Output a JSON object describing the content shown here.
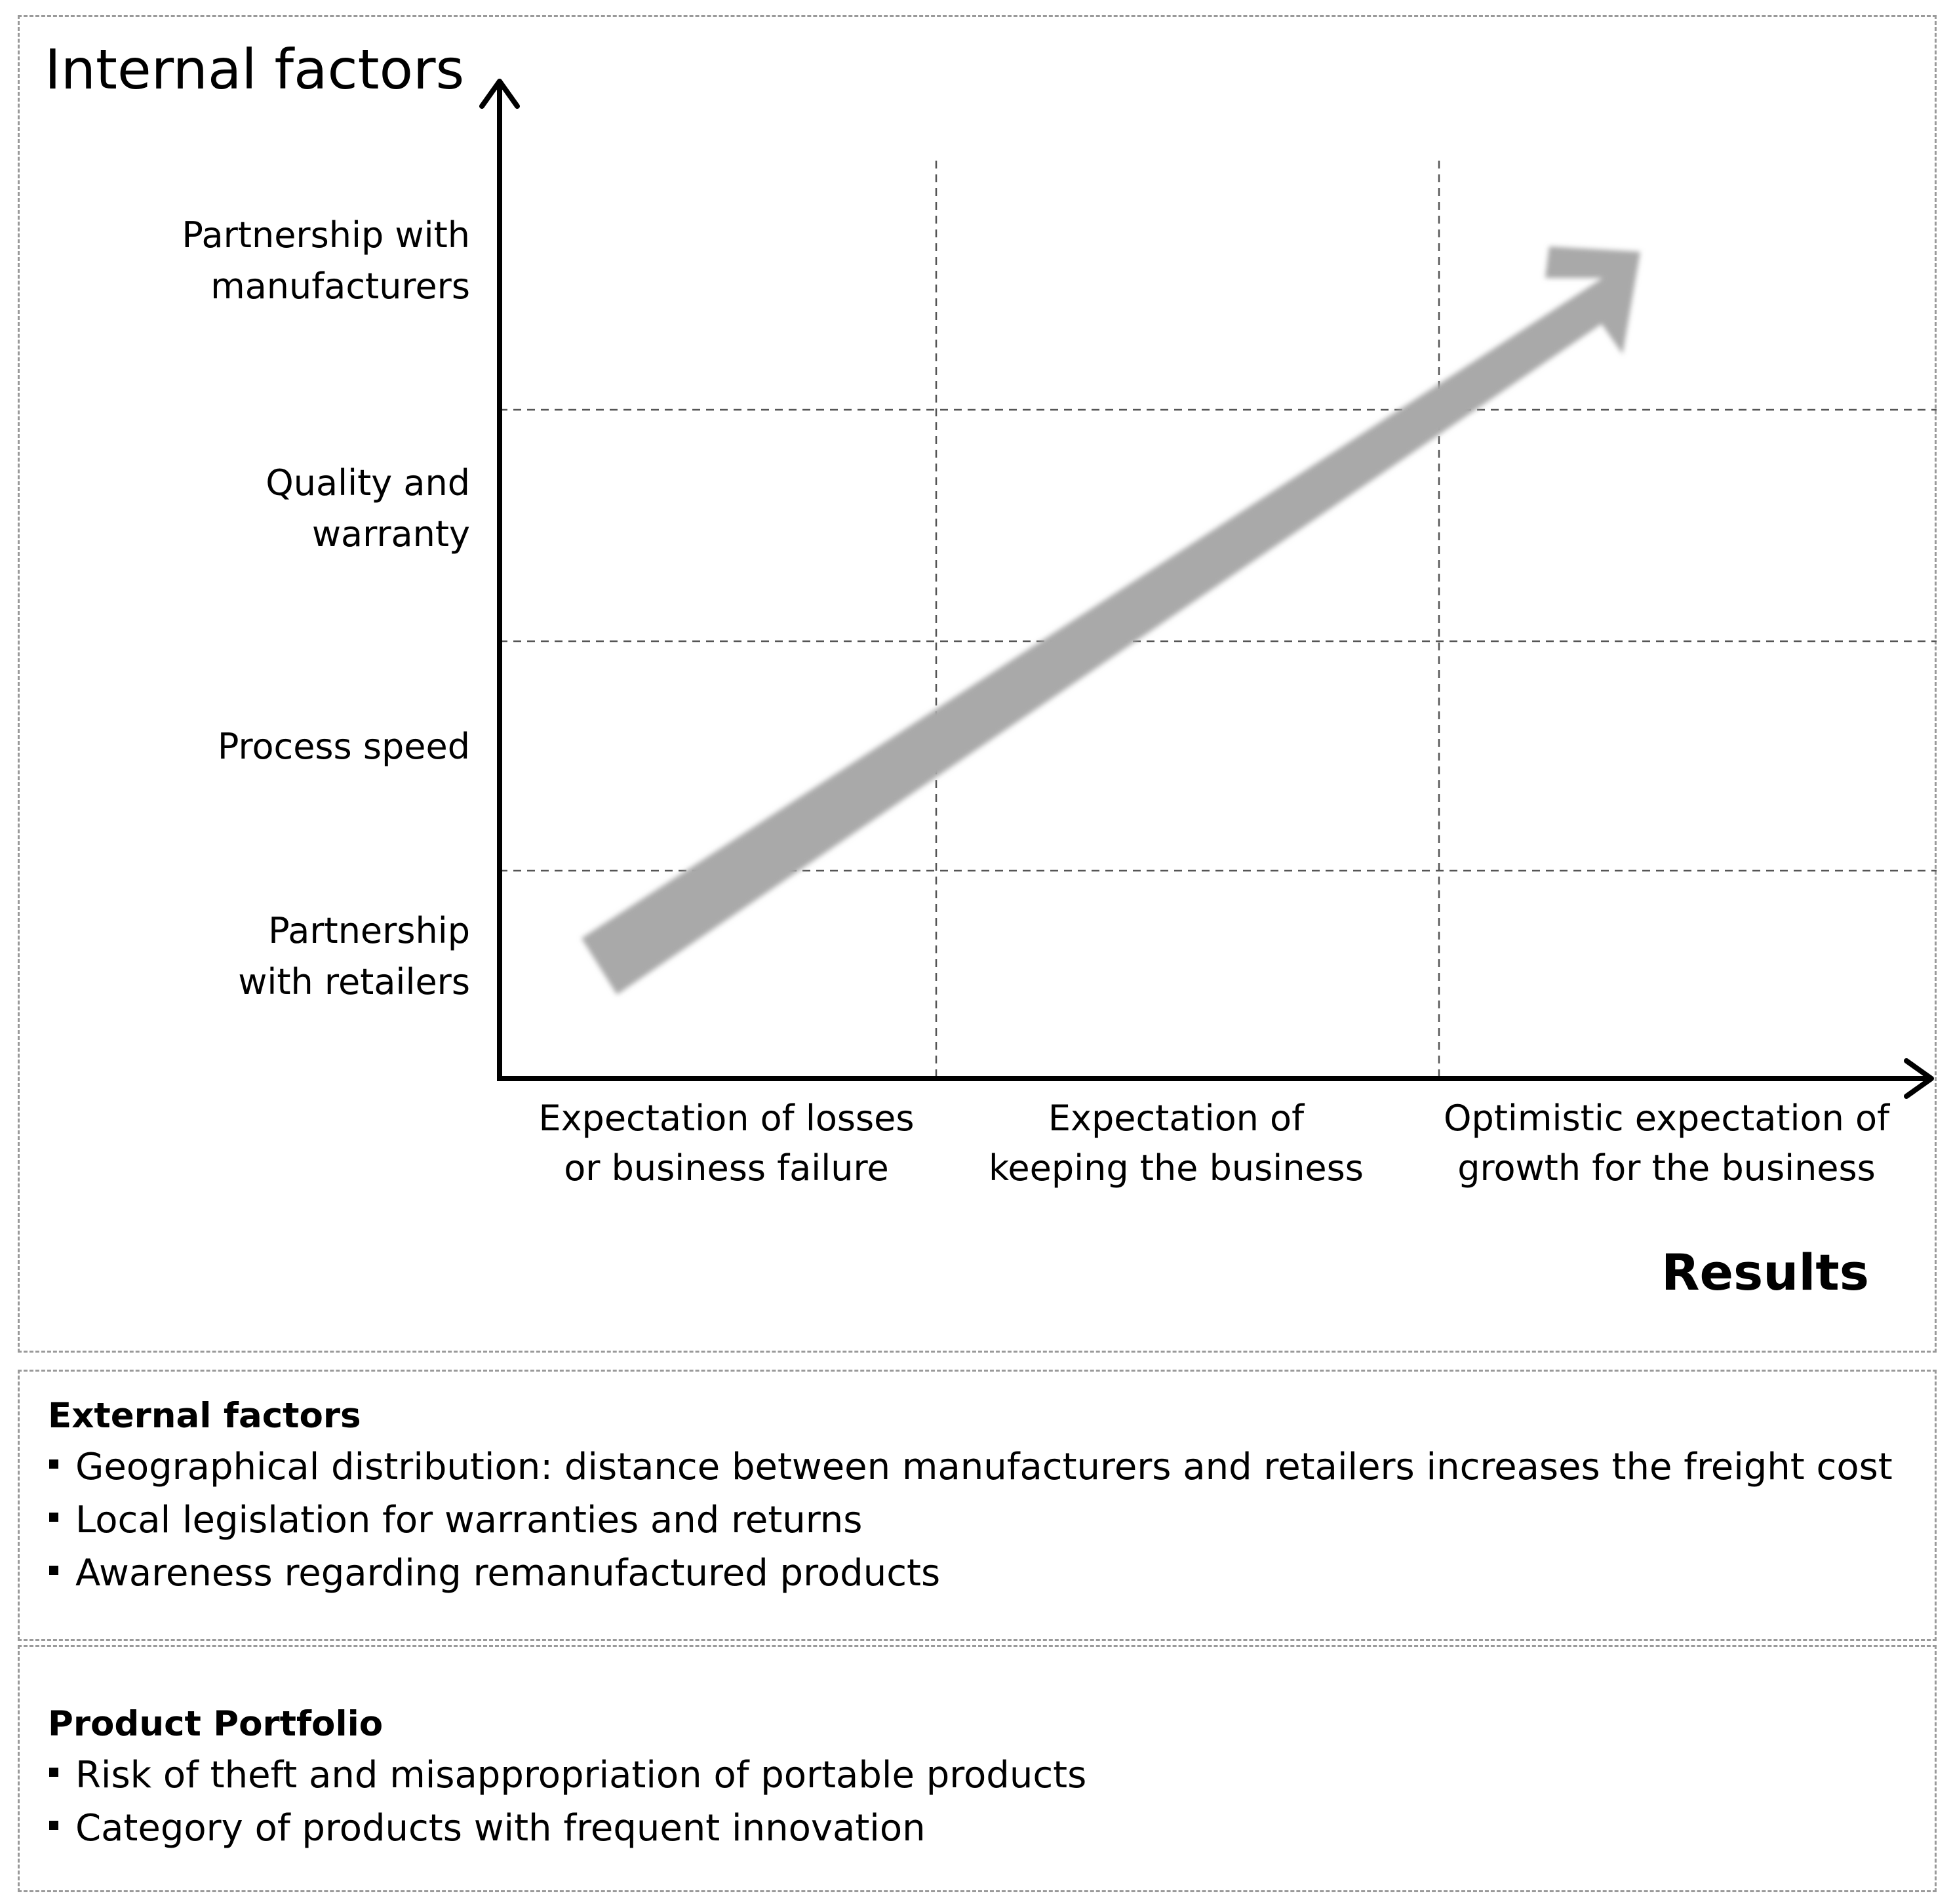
{
  "diagram": {
    "y_axis_title": "Internal factors",
    "x_axis_title": "Results",
    "y_levels": [
      "Partnership with\nmanufacturers",
      "Quality and\nwarranty",
      "Process speed",
      "Partnership\nwith retailers"
    ],
    "x_categories": [
      "Expectation of losses\nor business failure",
      "Expectation of\nkeeping the business",
      "Optimistic expectation of\ngrowth for the business"
    ],
    "colors": {
      "trend_arrow": "#a9a9a9",
      "axis": "#000000",
      "grid": "#555555",
      "panel_border": "#9a9a9a"
    }
  },
  "external_factors": {
    "heading": "External factors",
    "items": [
      "Geographical distribution: distance between manufacturers and retailers increases the freight cost",
      "Local legislation for warranties and returns",
      "Awareness regarding remanufactured products"
    ]
  },
  "product_portfolio": {
    "heading": "Product Portfolio",
    "items": [
      "Risk of theft and misappropriation of portable products",
      "Category of products with frequent innovation"
    ]
  }
}
